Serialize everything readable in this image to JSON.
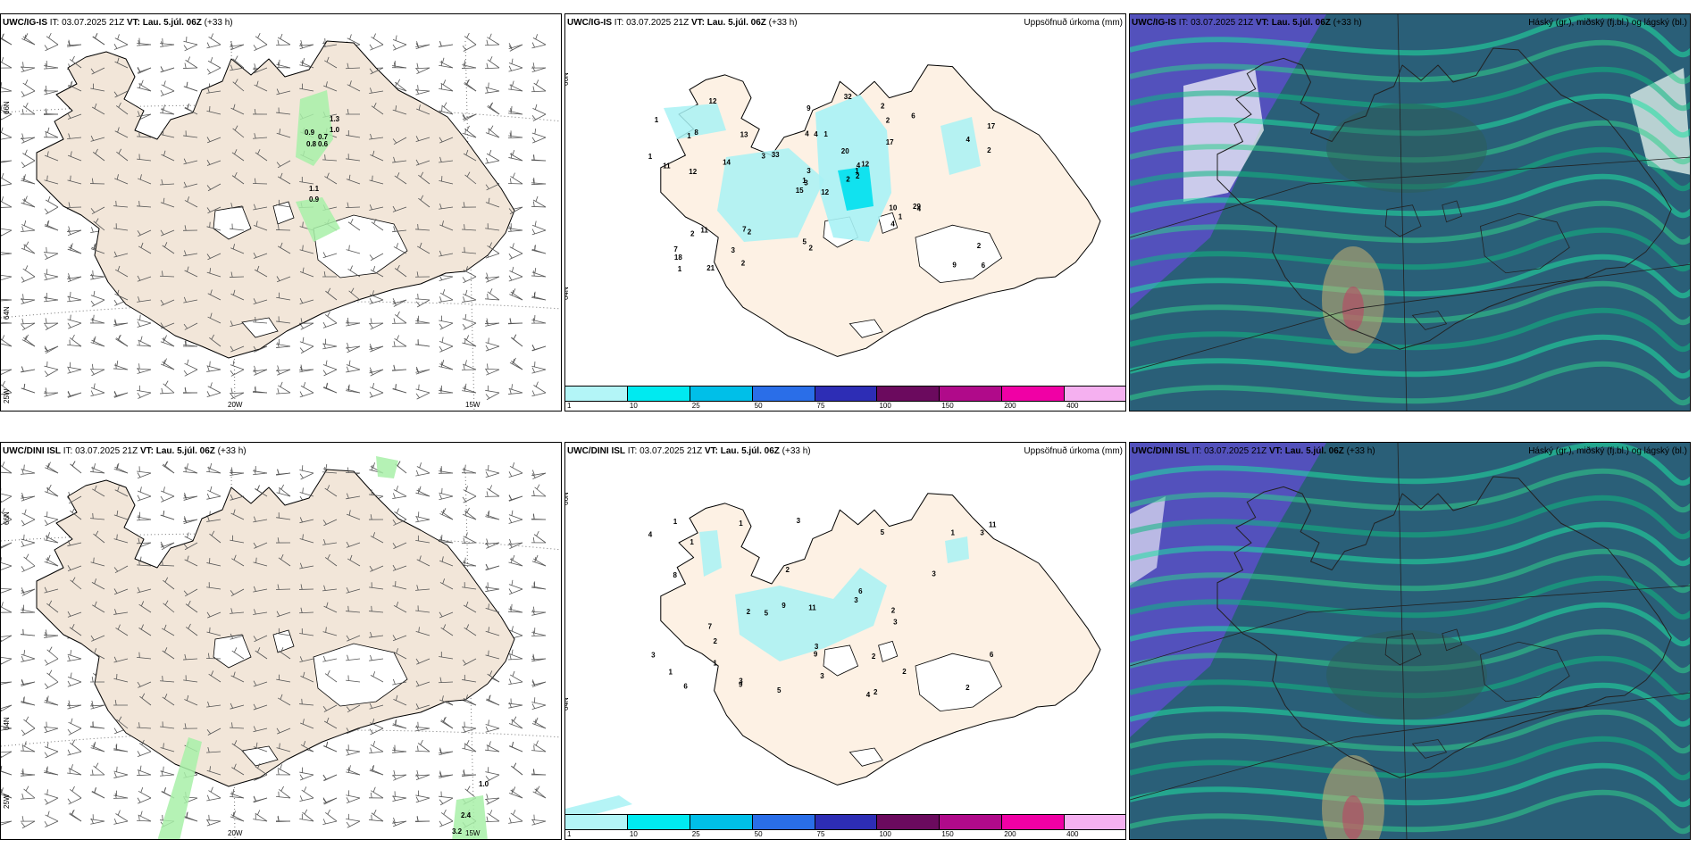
{
  "panels": {
    "wind_top": {
      "model": "UWC/IG-IS",
      "it_label": "IT:",
      "it": "03.07.2025 21Z",
      "vt_label": "VT:",
      "vt": "Lau. 5.júl. 06Z",
      "lead": "(+33 h)"
    },
    "precip_top": {
      "model": "UWC/IG-IS",
      "it_label": "IT:",
      "it": "03.07.2025 21Z",
      "vt_label": "VT:",
      "vt": "Lau. 5.júl. 06Z",
      "lead": "(+33 h)",
      "right": "Uppsöfnuð úrkoma (mm)"
    },
    "cloud_top": {
      "model": "UWC/IG-IS",
      "it_label": "IT:",
      "it": "03.07.2025 21Z",
      "vt_label": "VT:",
      "vt": "Lau. 5.júl. 06Z",
      "lead": "(+33 h)",
      "right": "Háský (gr.), miðský (fj.bl.) og lágský (bl.)"
    },
    "wind_bot": {
      "model": "UWC/DINI ISL",
      "it_label": "IT:",
      "it": "03.07.2025 21Z",
      "vt_label": "VT:",
      "vt": "Lau. 5.júl. 06Z",
      "lead": "(+33 h)"
    },
    "precip_bot": {
      "model": "UWC/DINI ISL",
      "it_label": "IT:",
      "it": "03.07.2025 21Z",
      "vt_label": "VT:",
      "vt": "Lau. 5.júl. 06Z",
      "lead": "(+33 h)",
      "right": "Uppsöfnuð úrkoma (mm)"
    },
    "cloud_bot": {
      "model": "UWC/DINI ISL",
      "it_label": "IT:",
      "it": "03.07.2025 21Z",
      "vt_label": "VT:",
      "vt": "Lau. 5.júl. 06Z",
      "lead": "(+33 h)",
      "right": "Háský (gr.), miðský (fj.bl.) og lágský (bl.)"
    }
  },
  "grid_labels": {
    "lat66": "66N",
    "lat64": "64N",
    "lon20": "20W",
    "lon15": "15W",
    "lon25": "25W"
  },
  "colorbar": {
    "colors": [
      "#b3f5f7",
      "#00eaf0",
      "#00bfe8",
      "#2a6ee8",
      "#2d2db5",
      "#6b0a5e",
      "#b00a8a",
      "#f000a5",
      "#f5b0f0"
    ],
    "labels": [
      "1",
      "10",
      "25",
      "50",
      "75",
      "100",
      "150",
      "200",
      "400"
    ]
  },
  "colors": {
    "land": "#f2e6d9",
    "land_precip": "#fdf1e4",
    "wet": "#a8f0a8",
    "cloud_bg": "#2a5f78",
    "ocean_cloud": "#5a4fc8"
  },
  "precip_top_values": [
    "12",
    "1",
    "3",
    "7",
    "4",
    "2",
    "2",
    "1",
    "2",
    "2",
    "12",
    "6",
    "12",
    "17",
    "15",
    "17",
    "21",
    "4",
    "20",
    "11",
    "33",
    "18",
    "3",
    "4",
    "12",
    "4",
    "8",
    "9",
    "11",
    "10",
    "2",
    "1",
    "5",
    "3",
    "13",
    "6",
    "7",
    "9",
    "2",
    "29",
    "32",
    "3",
    "14",
    "4",
    "2",
    "1",
    "1",
    "1",
    "2",
    "2",
    "2",
    "4",
    "1",
    "1"
  ],
  "precip_bot_values": [
    "5",
    "4",
    "3",
    "2",
    "1",
    "1",
    "2",
    "2",
    "3",
    "2",
    "1",
    "3",
    "9",
    "9",
    "5",
    "3",
    "8",
    "9",
    "5",
    "4",
    "2",
    "11",
    "6",
    "6",
    "3",
    "7",
    "3",
    "2",
    "1",
    "3",
    "11",
    "2",
    "3",
    "3",
    "1",
    "2",
    "6",
    "1"
  ],
  "wind_top_values": [
    "1.3",
    "1.0",
    "0.9",
    "0.7",
    "0.8",
    "0.6",
    "1.1",
    "0.9"
  ],
  "wind_bot_values": [
    "1.0",
    "2.4",
    "3.2"
  ]
}
